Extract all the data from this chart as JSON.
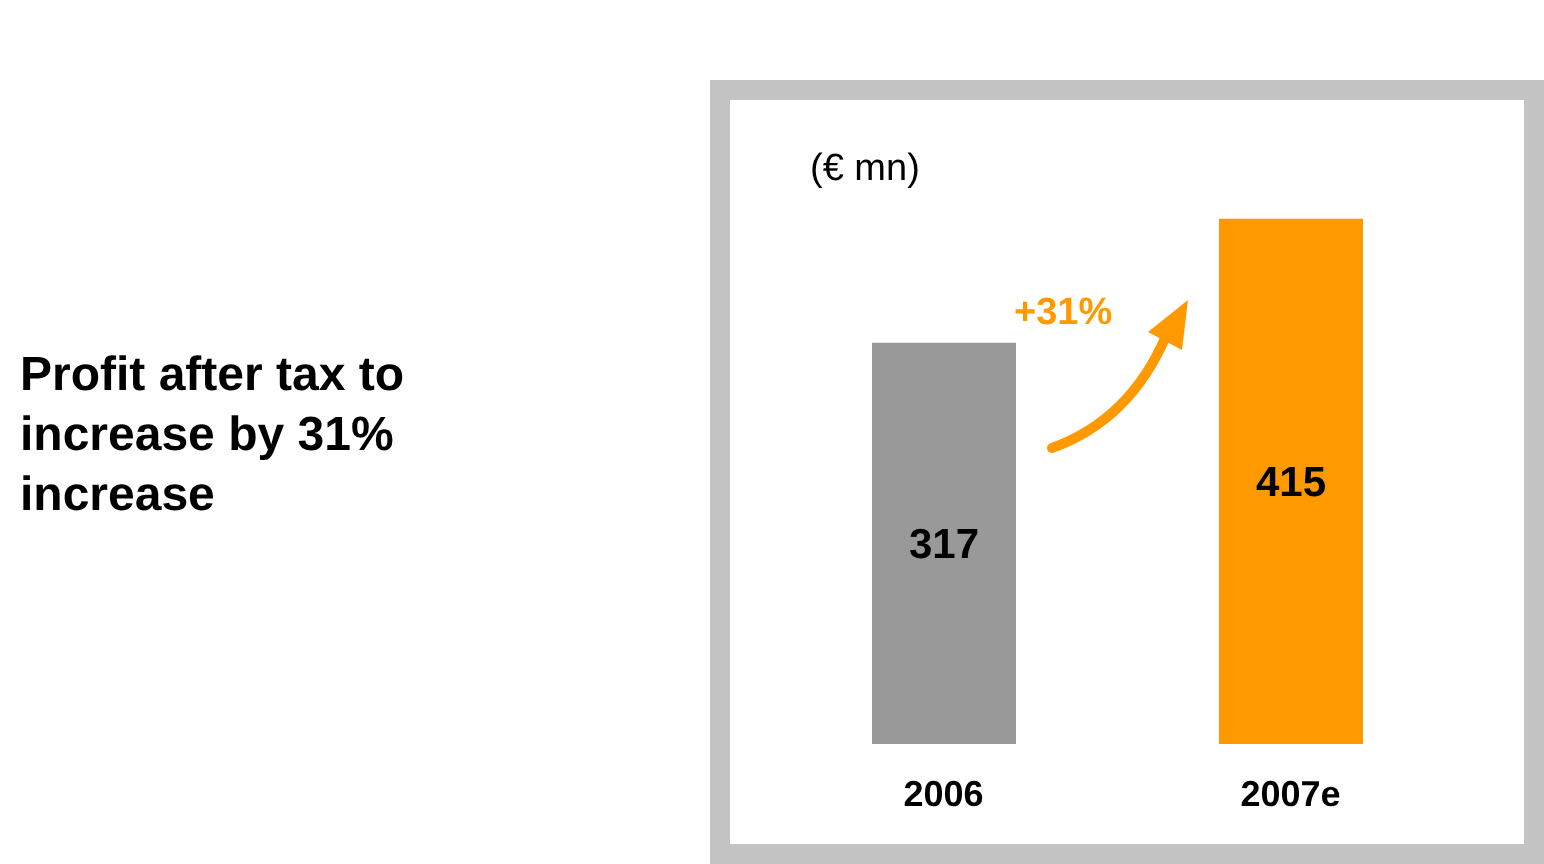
{
  "chart_data": {
    "type": "bar",
    "title": "Profit after tax to increase by 31% increase",
    "ylabel": "(€ mn)",
    "categories": [
      "2006",
      "2007e"
    ],
    "values": [
      317,
      415
    ],
    "colors": [
      "#999999",
      "#ff9900"
    ],
    "data_labels": true,
    "tick_labels": "x",
    "annotations": [
      "+31%"
    ]
  }
}
